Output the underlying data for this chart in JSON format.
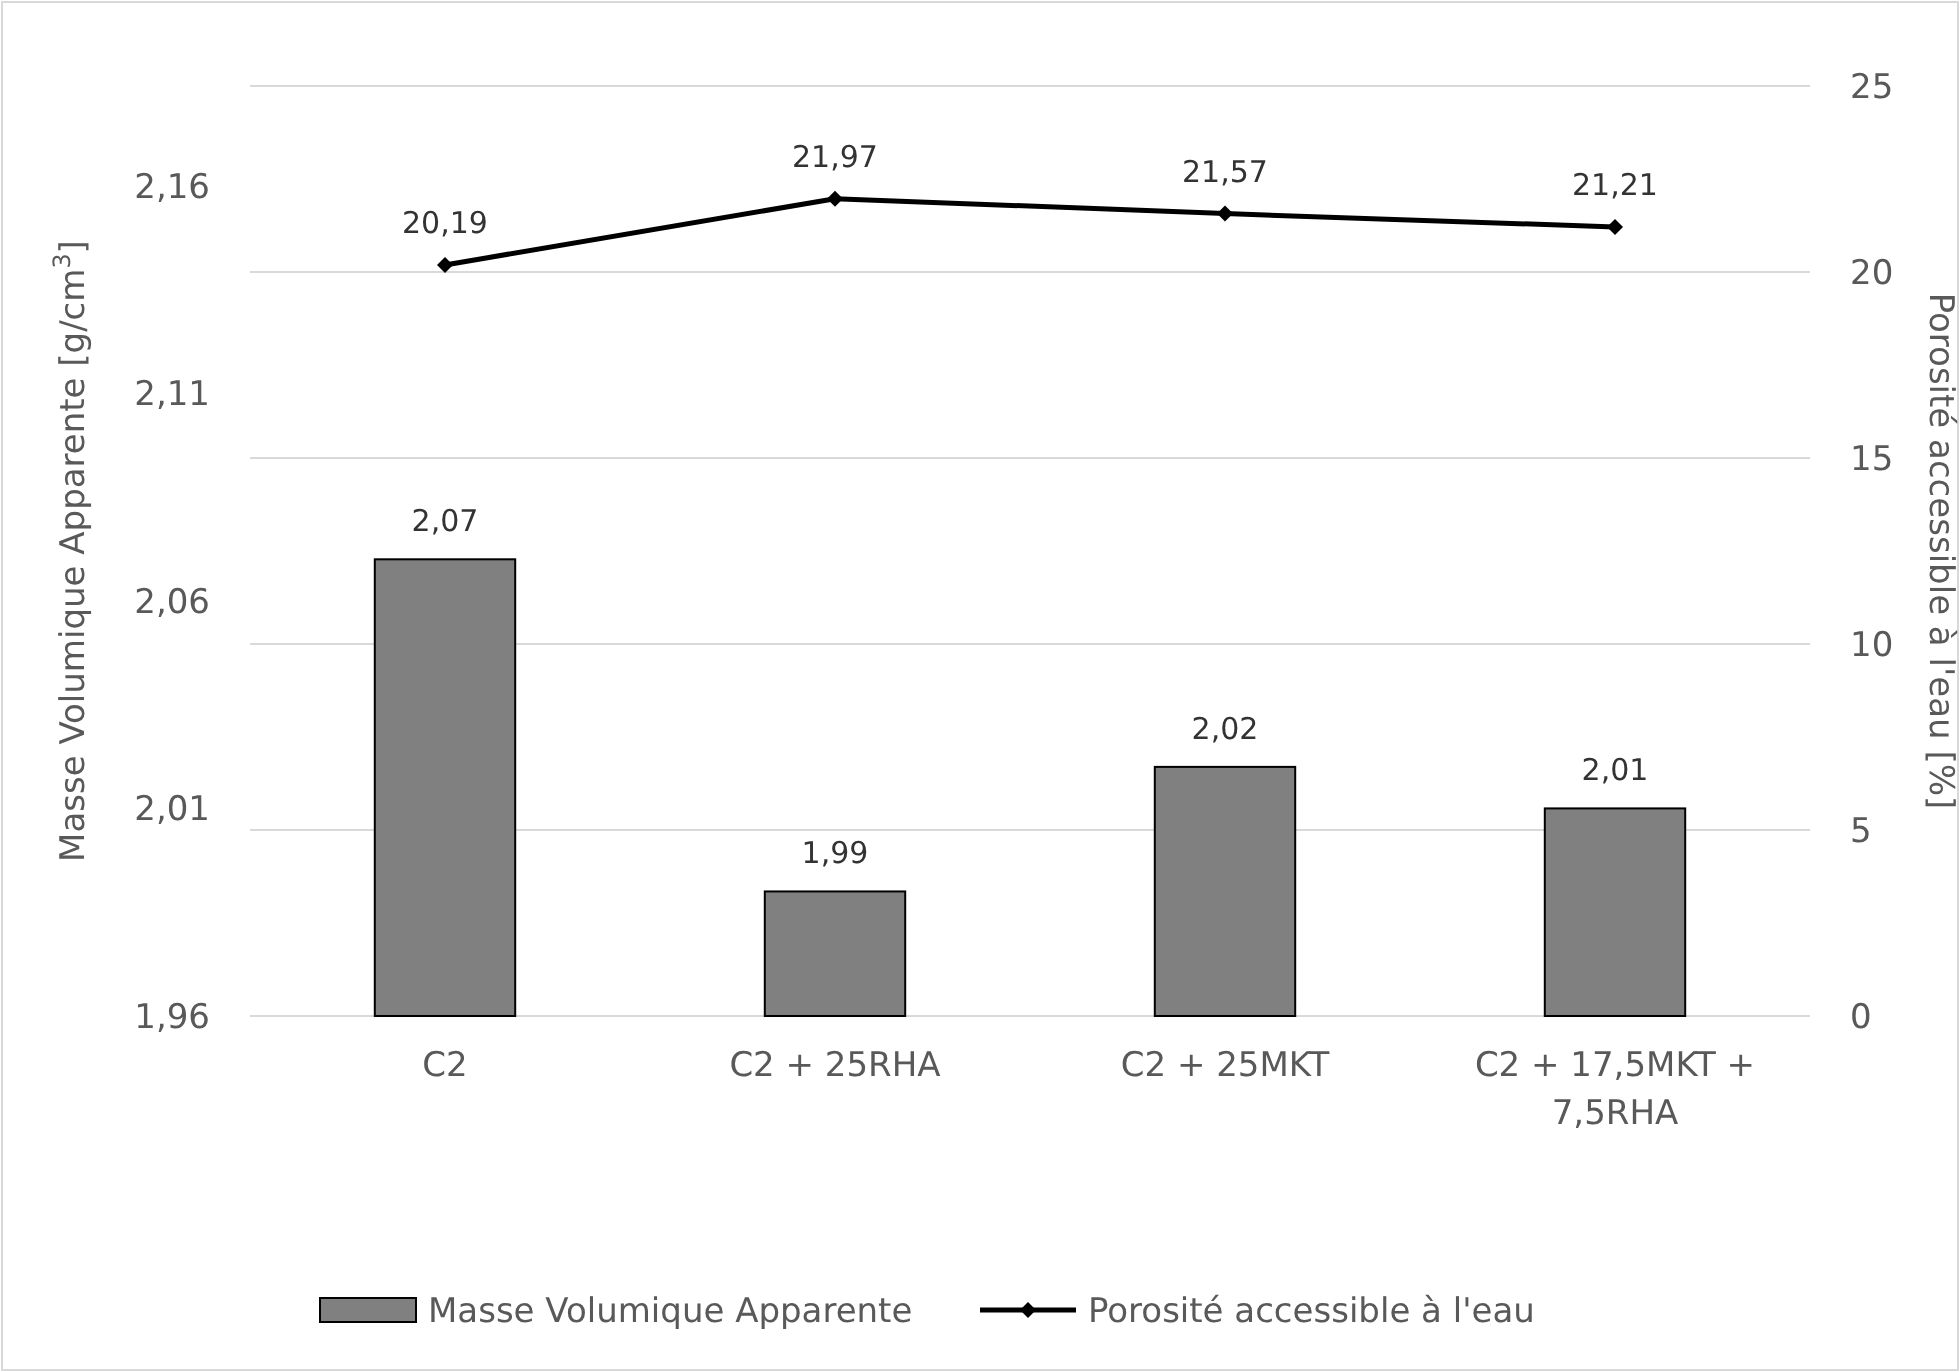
{
  "chart_data": {
    "type": "bar",
    "ylabel": "Masse Volumique Apparente [g/cm$^{3}$]",
    "y2label": "Porosité accessible à l'eau [%]",
    "categories": [
      "C2",
      "C2 + 25RHA",
      "C2 + 25MKT",
      "C2 + 17,5MKT + 7,5RHA"
    ],
    "series": [
      {
        "name": "Masse Volumique Apparente",
        "color": "#808080",
        "values": [
          2.07,
          1.99,
          2.02,
          2.01
        ],
        "value_labels": [
          "2,07",
          "1,99",
          "2,02",
          "2,01"
        ]
      },
      {
        "name": "Porosité accessible à l'eau",
        "type": "line",
        "axis": "y2",
        "color": "#000000",
        "marker": "diamond",
        "values": [
          20.19,
          21.97,
          21.57,
          21.21
        ],
        "value_labels": [
          "20,19",
          "21,97",
          "21,57",
          "21,21"
        ]
      }
    ],
    "ylim": [
      1.96,
      2.184
    ],
    "yticks": [
      {
        "value": 1.96,
        "label": "1,96"
      },
      {
        "value": 2.01,
        "label": "2,01"
      },
      {
        "value": 2.06,
        "label": "2,06"
      },
      {
        "value": 2.11,
        "label": "2,11"
      },
      {
        "value": 2.16,
        "label": "2,16"
      }
    ],
    "y2lim": [
      0,
      25
    ],
    "y2ticks": [
      0,
      5,
      10,
      15,
      20,
      25
    ],
    "grid": true,
    "legend": "bottom"
  }
}
